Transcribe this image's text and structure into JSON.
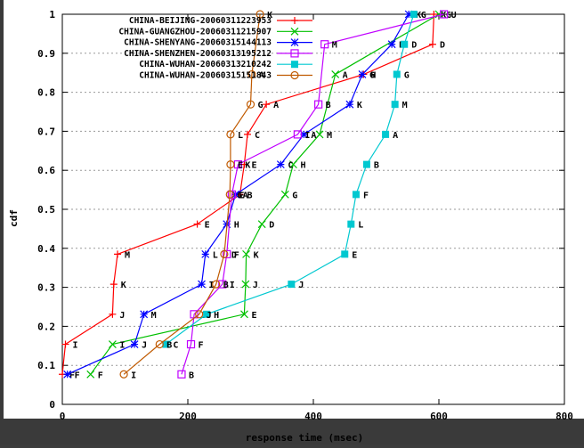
{
  "chart_data": {
    "type": "line",
    "xlabel": "response time (msec)",
    "ylabel": "cdf",
    "xlim": [
      0,
      800
    ],
    "ylim": [
      0,
      1
    ],
    "x_ticks": [
      0,
      200,
      400,
      600,
      800
    ],
    "y_ticks": [
      0,
      0.1,
      0.2,
      0.3,
      0.4,
      0.5,
      0.6,
      0.7,
      0.8,
      0.9,
      1
    ],
    "grid": "horizontal dotted",
    "legend_position": "top-left",
    "series": [
      {
        "name": "CHINA-BEIJING-20060311223953",
        "color": "#ff0000",
        "marker": "plus",
        "points": [
          [
            0,
            0.077
          ],
          [
            5,
            0.154
          ],
          [
            80,
            0.231
          ],
          [
            82,
            0.308
          ],
          [
            88,
            0.385
          ],
          [
            215,
            0.462
          ],
          [
            283,
            0.538
          ],
          [
            290,
            0.615
          ],
          [
            295,
            0.692
          ],
          [
            325,
            0.769
          ],
          [
            480,
            0.846
          ],
          [
            590,
            0.923
          ],
          [
            592,
            1.0
          ]
        ],
        "labels": [
          [
            "F",
            0
          ],
          [
            "I",
            1
          ],
          [
            "J",
            2
          ],
          [
            "K",
            3
          ],
          [
            "M",
            4
          ],
          [
            "E",
            5
          ],
          [
            "B",
            6
          ],
          [
            "E",
            7
          ],
          [
            "C",
            8
          ],
          [
            "A",
            9
          ],
          [
            "H",
            10
          ],
          [
            "D",
            11
          ],
          [
            "K",
            12
          ]
        ]
      },
      {
        "name": "CHINA-GUANGZHOU-20060311215907",
        "color": "#00c000",
        "marker": "x",
        "points": [
          [
            45,
            0.077
          ],
          [
            80,
            0.154
          ],
          [
            290,
            0.231
          ],
          [
            292,
            0.308
          ],
          [
            293,
            0.385
          ],
          [
            318,
            0.462
          ],
          [
            355,
            0.538
          ],
          [
            368,
            0.615
          ],
          [
            410,
            0.692
          ],
          [
            435,
            0.846
          ],
          [
            600,
            1.0
          ]
        ],
        "labels": [
          [
            "F",
            0
          ],
          [
            "I",
            1
          ],
          [
            "E",
            2
          ],
          [
            "J",
            3
          ],
          [
            "K",
            4
          ],
          [
            "D",
            5
          ],
          [
            "G",
            6
          ],
          [
            "H",
            7
          ],
          [
            "M",
            8
          ],
          [
            "A",
            9
          ],
          [
            "G",
            10
          ]
        ]
      },
      {
        "name": "CHINA-SHENYANG-20060315144113",
        "color": "#0000ff",
        "marker": "star",
        "points": [
          [
            8,
            0.077
          ],
          [
            115,
            0.154
          ],
          [
            130,
            0.231
          ],
          [
            222,
            0.308
          ],
          [
            228,
            0.385
          ],
          [
            262,
            0.462
          ],
          [
            276,
            0.538
          ],
          [
            348,
            0.615
          ],
          [
            385,
            0.692
          ],
          [
            458,
            0.769
          ],
          [
            478,
            0.846
          ],
          [
            525,
            0.923
          ],
          [
            552,
            1.0
          ]
        ],
        "labels": [
          [
            "F",
            0
          ],
          [
            "J",
            1
          ],
          [
            "M",
            2
          ],
          [
            "I",
            3
          ],
          [
            "L",
            4
          ],
          [
            "H",
            5
          ],
          [
            "A",
            6
          ],
          [
            "C",
            7
          ],
          [
            "A",
            8
          ],
          [
            "K",
            9
          ],
          [
            "G",
            10
          ],
          [
            "D",
            11
          ],
          [
            "K",
            12
          ]
        ]
      },
      {
        "name": "CHINA-SHENZHEN-20060313195212",
        "color": "#c000ff",
        "marker": "square",
        "points": [
          [
            190,
            0.077
          ],
          [
            205,
            0.154
          ],
          [
            210,
            0.231
          ],
          [
            255,
            0.308
          ],
          [
            262,
            0.385
          ],
          [
            270,
            0.538
          ],
          [
            280,
            0.615
          ],
          [
            375,
            0.692
          ],
          [
            408,
            0.769
          ],
          [
            418,
            0.923
          ],
          [
            608,
            1.0
          ]
        ],
        "labels": [
          [
            "B",
            0
          ],
          [
            "F",
            1
          ],
          [
            "J",
            2
          ],
          [
            "I",
            3
          ],
          [
            "F",
            4
          ],
          [
            "E",
            5
          ],
          [
            "K",
            6
          ],
          [
            "I",
            7
          ],
          [
            "B",
            8
          ],
          [
            "M",
            9
          ],
          [
            "U",
            10
          ]
        ]
      },
      {
        "name": "CHINA-WUHAN-20060313210242",
        "color": "#00c8d0",
        "marker": "filled-square",
        "points": [
          [
            165,
            0.154
          ],
          [
            230,
            0.231
          ],
          [
            365,
            0.308
          ],
          [
            450,
            0.385
          ],
          [
            460,
            0.462
          ],
          [
            468,
            0.538
          ],
          [
            485,
            0.615
          ],
          [
            515,
            0.692
          ],
          [
            530,
            0.769
          ],
          [
            533,
            0.846
          ],
          [
            545,
            0.923
          ],
          [
            560,
            1.0
          ]
        ],
        "labels": [
          [
            "C",
            0
          ],
          [
            "H",
            1
          ],
          [
            "J",
            2
          ],
          [
            "E",
            3
          ],
          [
            "L",
            4
          ],
          [
            "F",
            5
          ],
          [
            "B",
            6
          ],
          [
            "A",
            7
          ],
          [
            "M",
            8
          ],
          [
            "G",
            9
          ],
          [
            "D",
            10
          ],
          [
            "G",
            11
          ]
        ]
      },
      {
        "name": "CHINA-WUHAN-20060315151843",
        "color": "#c05a00",
        "marker": "circle",
        "points": [
          [
            98,
            0.077
          ],
          [
            155,
            0.154
          ],
          [
            218,
            0.231
          ],
          [
            245,
            0.308
          ],
          [
            258,
            0.385
          ],
          [
            267,
            0.538
          ],
          [
            268,
            0.615
          ],
          [
            268,
            0.692
          ],
          [
            300,
            0.769
          ],
          [
            302,
            0.846
          ],
          [
            315,
            1.0
          ]
        ],
        "labels": [
          [
            "I",
            0
          ],
          [
            "B",
            1
          ],
          [
            "J",
            2
          ],
          [
            "B",
            3
          ],
          [
            "D",
            4
          ],
          [
            "G",
            5
          ],
          [
            "E",
            6
          ],
          [
            "L",
            7
          ],
          [
            "G",
            8
          ],
          [
            "A",
            9
          ],
          [
            "K",
            10
          ]
        ]
      }
    ]
  }
}
